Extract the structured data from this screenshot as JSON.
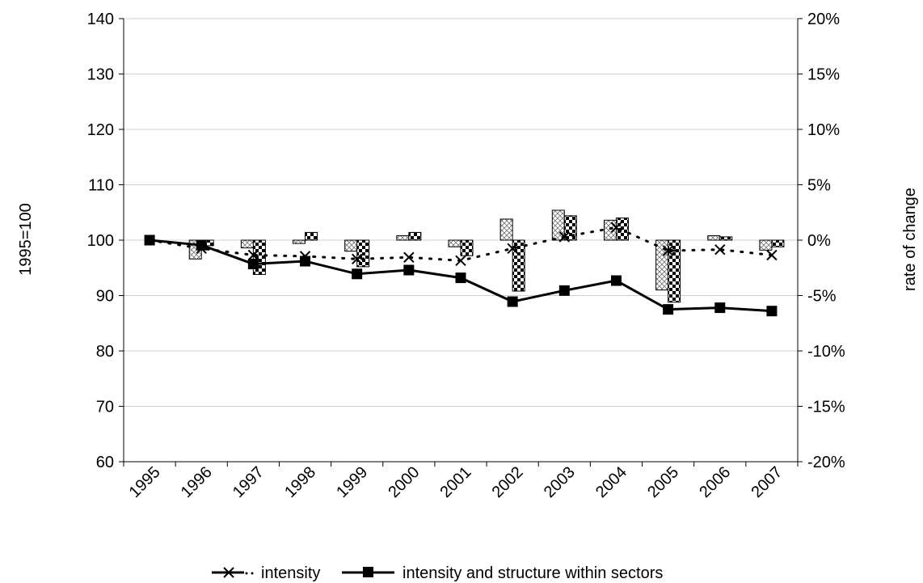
{
  "chart_data": {
    "type": "line",
    "xlabel": "",
    "ylabel_left": "1995=100",
    "ylabel_right": "rate of change",
    "ylim_left": [
      60,
      140
    ],
    "yticks_left": [
      "60",
      "70",
      "80",
      "90",
      "100",
      "110",
      "120",
      "130",
      "140"
    ],
    "ylim_right": [
      -0.2,
      0.2
    ],
    "yticks_right": [
      "-20%",
      "-15%",
      "-10%",
      "-5%",
      "0%",
      "5%",
      "10%",
      "15%",
      "20%"
    ],
    "categories": [
      "1995",
      "1996",
      "1997",
      "1998",
      "1999",
      "2000",
      "2001",
      "2002",
      "2003",
      "2004",
      "2005",
      "2006",
      "2007"
    ],
    "grid": true,
    "legend_position": "bottom",
    "series": [
      {
        "name": "intensity",
        "axis": "left",
        "style": "dotted-x",
        "values": [
          100,
          98.5,
          97.3,
          97.1,
          96.6,
          96.9,
          96.3,
          98.5,
          100.6,
          102.3,
          98.1,
          98.3,
          97.3
        ]
      },
      {
        "name": "intensity and structure within sectors",
        "axis": "left",
        "style": "solid-square",
        "values": [
          100,
          99.1,
          95.7,
          96.2,
          93.9,
          94.6,
          93.2,
          88.9,
          90.9,
          92.7,
          87.5,
          87.8,
          87.2
        ]
      }
    ],
    "bars": [
      {
        "pattern": "crosshatch",
        "axis": "right",
        "values": [
          null,
          -0.017,
          -0.007,
          -0.003,
          -0.01,
          0.004,
          -0.006,
          0.019,
          0.027,
          0.018,
          -0.045,
          0.004,
          -0.009
        ]
      },
      {
        "pattern": "checker",
        "axis": "right",
        "values": [
          null,
          -0.005,
          -0.031,
          0.007,
          -0.024,
          0.007,
          -0.014,
          -0.046,
          0.022,
          0.02,
          -0.056,
          0.003,
          -0.006
        ]
      }
    ]
  }
}
